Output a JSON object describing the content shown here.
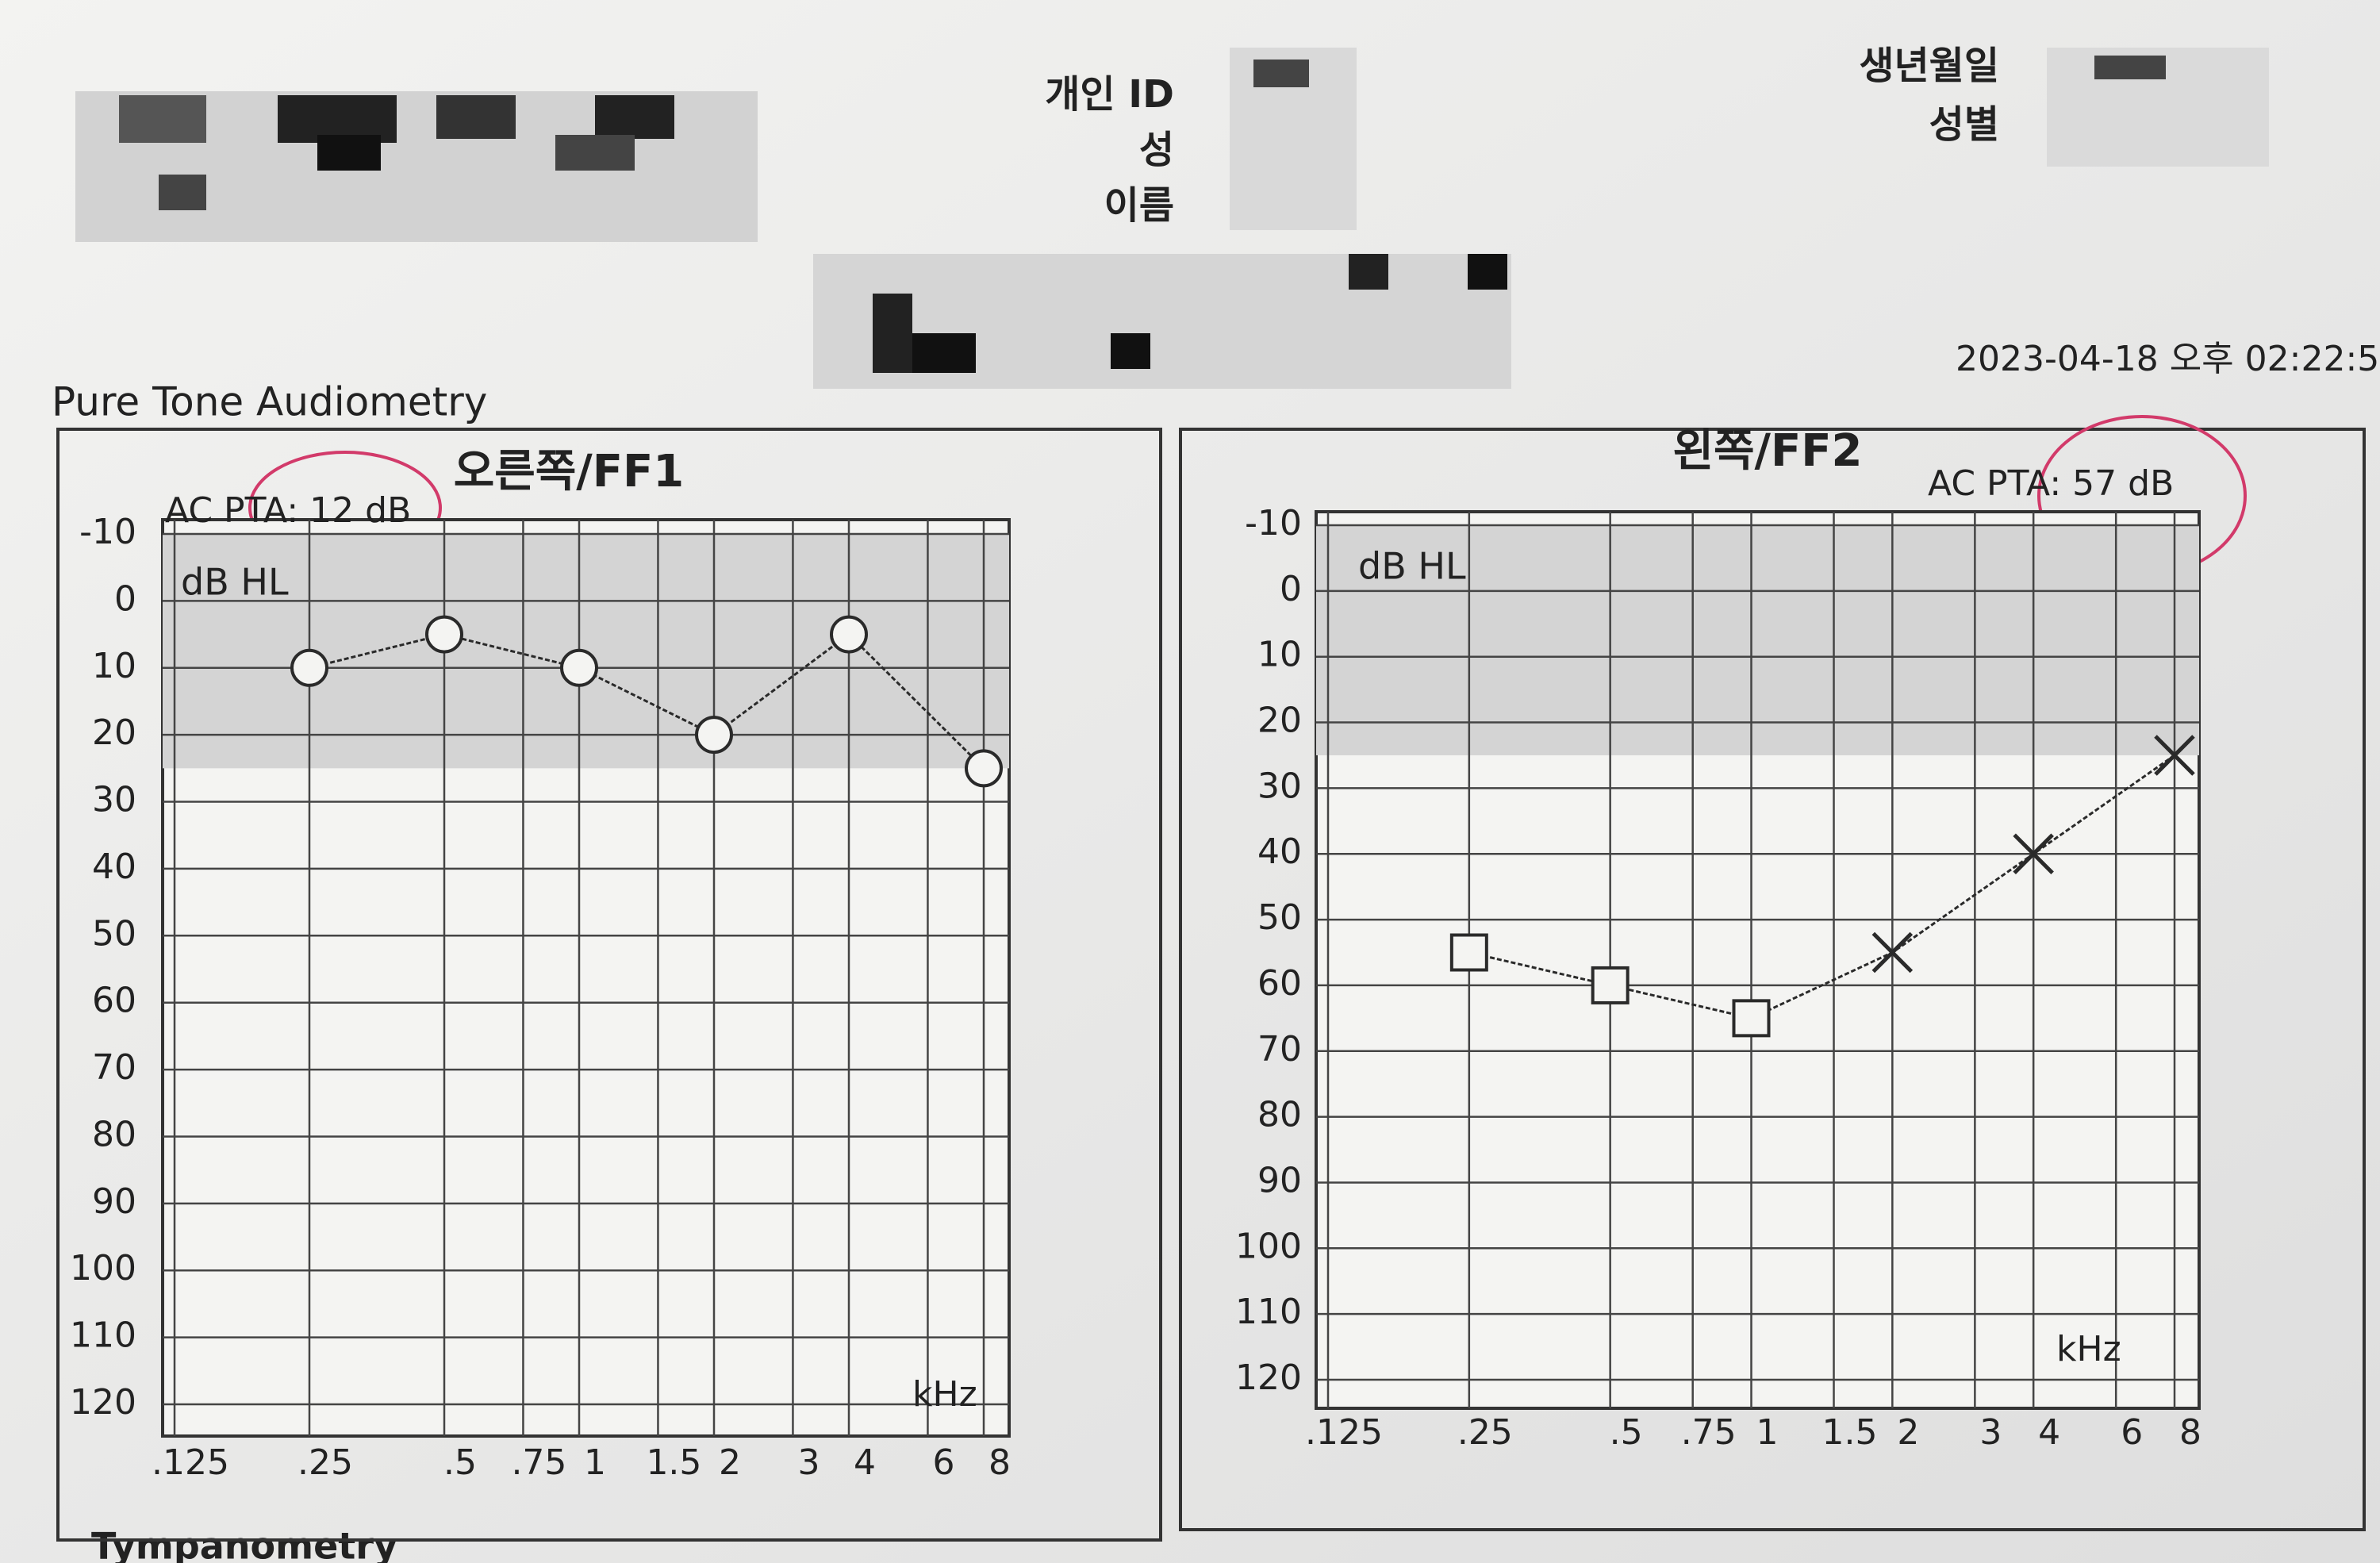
{
  "page": {
    "heading": "Pure Tone Audiometry",
    "date": "2023-04-18 오후 02:22:5",
    "fields": [
      "개인 ID",
      "성",
      "이름",
      "생년월일",
      "성별"
    ],
    "footer": "Tympanometry"
  },
  "chart_data": [
    {
      "type": "line",
      "title": "오른쪽/FF1",
      "annotation": "AC PTA: 12 dB",
      "y_label": "dB HL",
      "x_label": "kHz",
      "x": [
        0.25,
        0.5,
        1,
        2,
        4,
        8
      ],
      "values": [
        10,
        5,
        10,
        20,
        5,
        25
      ],
      "markers": [
        "circle",
        "circle",
        "circle",
        "circle",
        "circle",
        "circle"
      ],
      "color": "#2a2a2a",
      "x_log": true,
      "xlim": [
        0.125,
        8
      ],
      "xticks": [
        {
          "value": 0.125,
          "label": ".125"
        },
        {
          "value": 0.25,
          "label": ".25"
        },
        {
          "value": 0.5,
          "label": ".5"
        },
        {
          "value": 0.75,
          "label": ".75"
        },
        1,
        {
          "value": 1.5,
          "label": "1.5"
        },
        2,
        3,
        4,
        6,
        8
      ],
      "ylim": [
        -10,
        120
      ],
      "y_reversed": true,
      "yticks": [
        -10,
        0,
        10,
        20,
        30,
        40,
        50,
        60,
        70,
        80,
        90,
        100,
        110,
        120
      ],
      "grid": true,
      "shaded_range": [
        -10,
        25
      ]
    },
    {
      "type": "line",
      "title": "왼쪽/FF2",
      "annotation": "AC PTA: 57 dB",
      "y_label": "dB HL",
      "x_label": "kHz",
      "x": [
        0.25,
        0.5,
        1,
        2,
        4,
        8
      ],
      "values": [
        55,
        60,
        65,
        55,
        40,
        25
      ],
      "markers": [
        "square",
        "square",
        "square",
        "x",
        "x",
        "x"
      ],
      "color": "#2a2a2a",
      "x_log": true,
      "xlim": [
        0.125,
        8
      ],
      "xticks": [
        {
          "value": 0.125,
          "label": ".125"
        },
        {
          "value": 0.25,
          "label": ".25"
        },
        {
          "value": 0.5,
          "label": ".5"
        },
        {
          "value": 0.75,
          "label": ".75"
        },
        1,
        {
          "value": 1.5,
          "label": "1.5"
        },
        2,
        3,
        4,
        6,
        8
      ],
      "ylim": [
        -10,
        120
      ],
      "y_reversed": true,
      "yticks": [
        -10,
        0,
        10,
        20,
        30,
        40,
        50,
        60,
        70,
        80,
        90,
        100,
        110,
        120
      ],
      "grid": true,
      "shaded_range": [
        -10,
        25
      ]
    }
  ]
}
